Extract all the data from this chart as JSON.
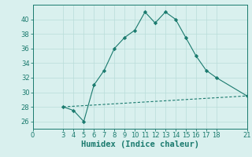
{
  "title": "",
  "xlabel": "Humidex (Indice chaleur)",
  "curve1_x": [
    3,
    4,
    5,
    6,
    7,
    8,
    9,
    10,
    11,
    12,
    13,
    14,
    15,
    16,
    17,
    18,
    21
  ],
  "curve1_y": [
    28,
    27.5,
    26,
    31,
    33,
    36,
    37.5,
    38.5,
    41,
    39.5,
    41,
    40,
    37.5,
    35,
    33,
    32,
    29.5
  ],
  "curve2_x": [
    3,
    21
  ],
  "curve2_y": [
    28,
    29.5
  ],
  "line_color": "#1a7a6e",
  "bg_color": "#d9f0ee",
  "grid_color": "#b8ddd9",
  "xlim": [
    0,
    21
  ],
  "ylim": [
    25,
    42
  ],
  "xticks": [
    0,
    3,
    4,
    5,
    6,
    7,
    8,
    9,
    10,
    11,
    12,
    13,
    14,
    15,
    16,
    17,
    18,
    21
  ],
  "yticks": [
    26,
    28,
    30,
    32,
    34,
    36,
    38,
    40
  ],
  "tick_fontsize": 6,
  "xlabel_fontsize": 7.5
}
